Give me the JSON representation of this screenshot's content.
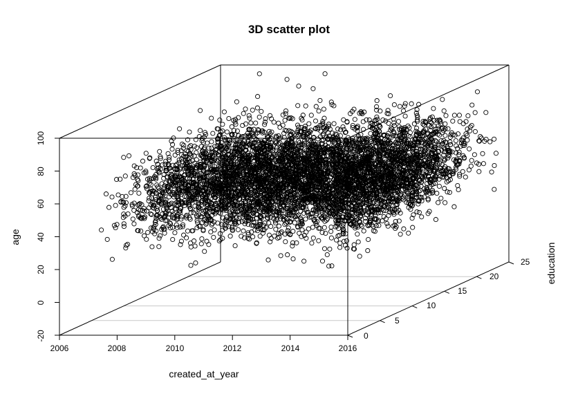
{
  "chart_data": {
    "type": "scatter",
    "title": "3D scatter plot",
    "xlabel": "created_at_year",
    "ylabel": "education",
    "zlabel": "age",
    "xlim": [
      2006,
      2016
    ],
    "ylim": [
      0,
      25
    ],
    "zlim": [
      -20,
      100
    ],
    "x_ticks": [
      "2006",
      "2008",
      "2010",
      "2012",
      "2014",
      "2016"
    ],
    "y_ticks": [
      "0",
      "5",
      "10",
      "15",
      "20",
      "25"
    ],
    "z_ticks": [
      "-20",
      "0",
      "20",
      "40",
      "60",
      "80",
      "100"
    ],
    "grid": true,
    "point_count_estimate": 6000,
    "distribution": {
      "x_range": [
        2007.3,
        2015.8
      ],
      "y_range": [
        0,
        24
      ],
      "z_mean": 55,
      "z_sd": 13,
      "z_range": [
        13,
        105
      ]
    }
  }
}
